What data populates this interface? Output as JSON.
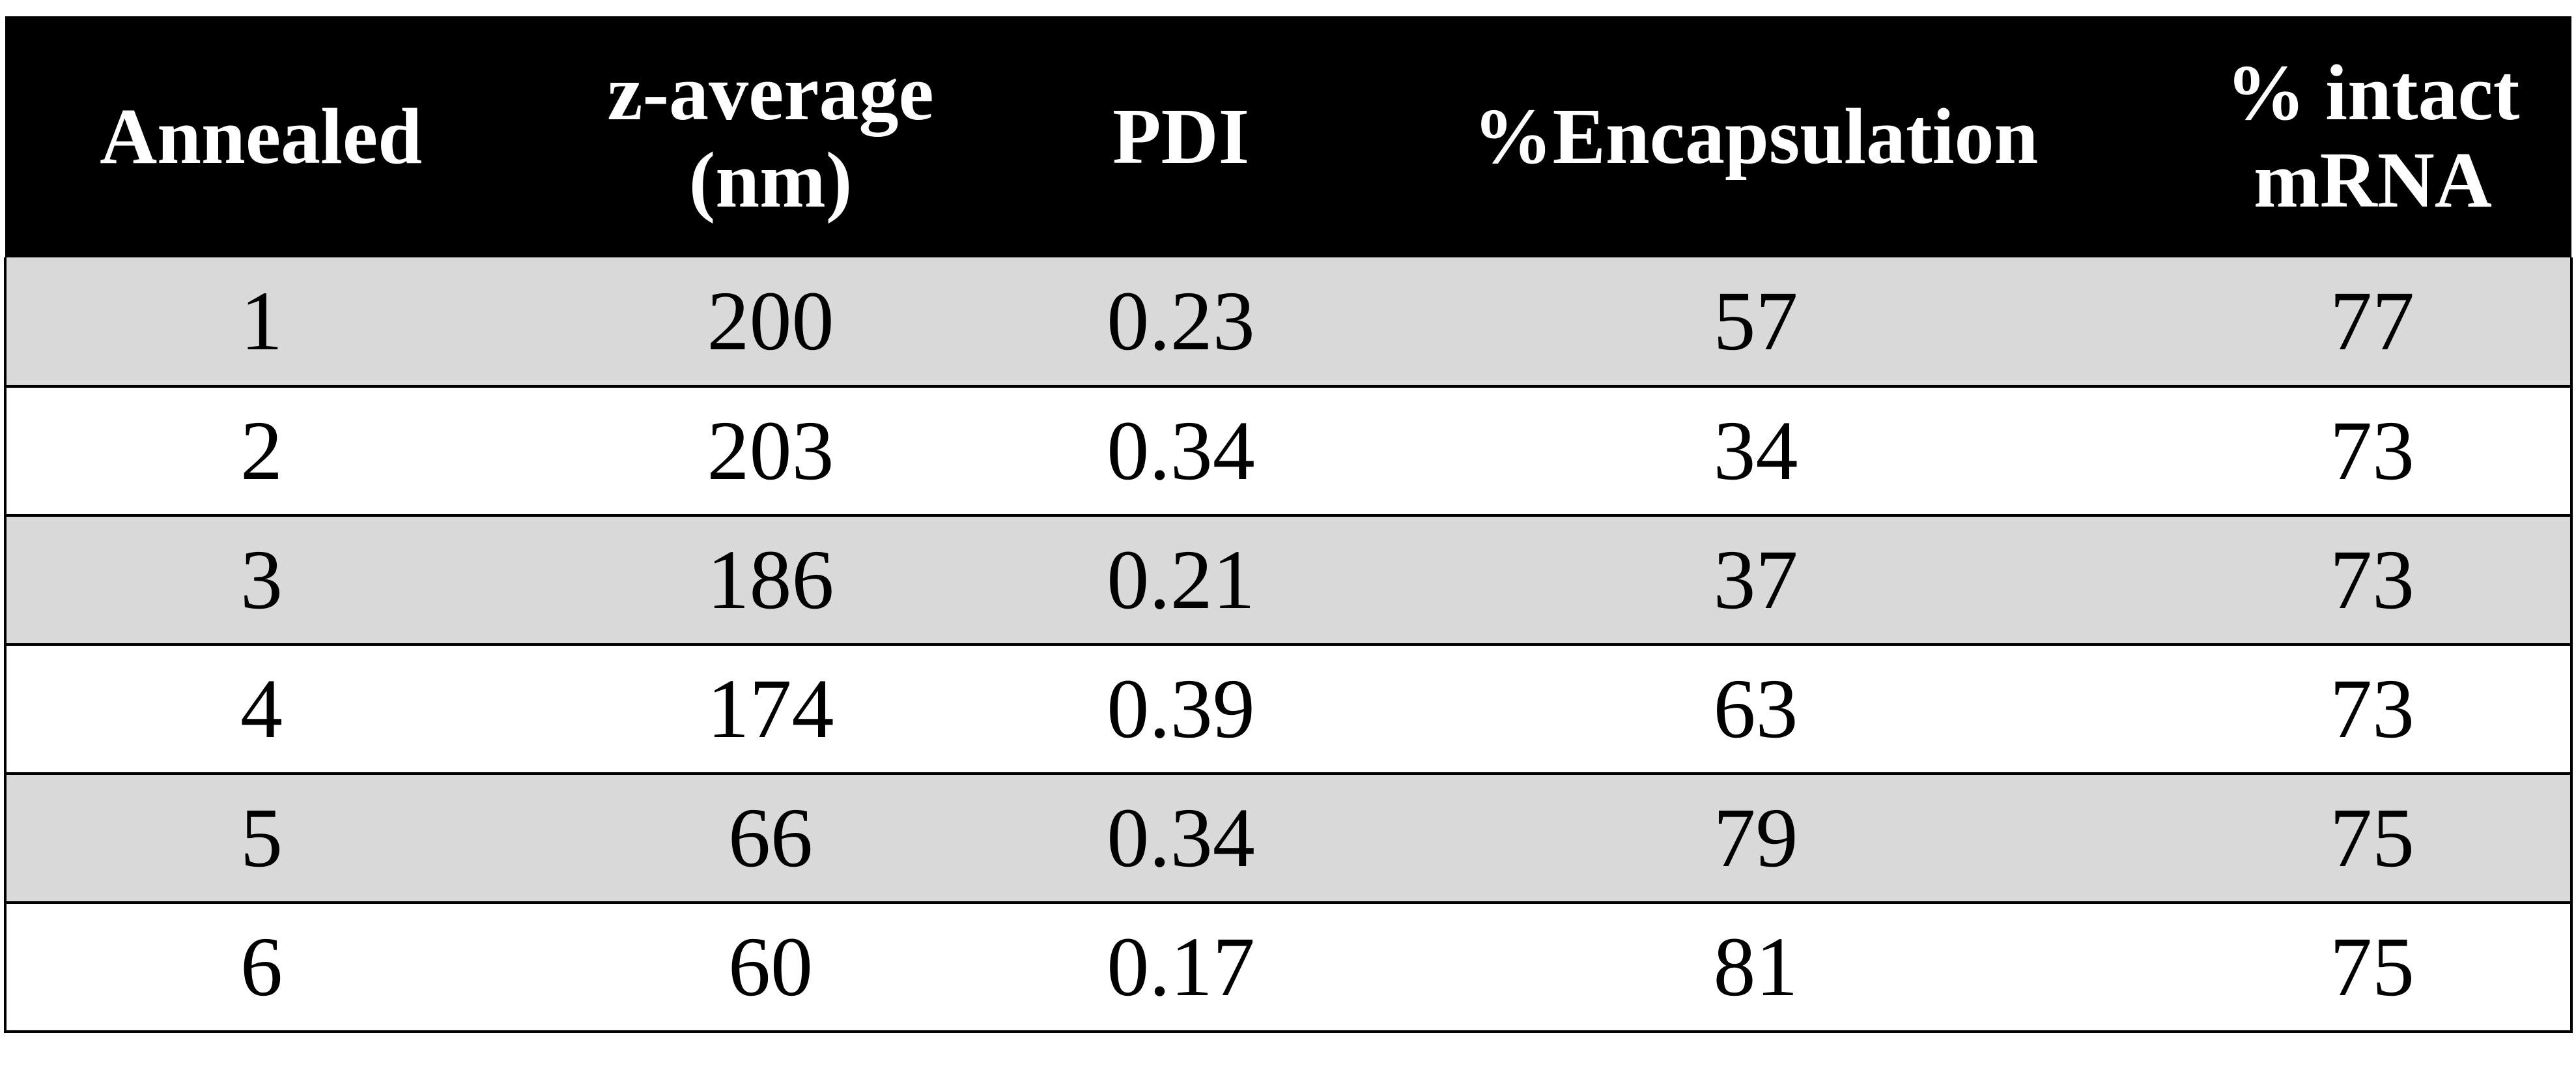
{
  "table": {
    "headers": [
      [
        "Annealed"
      ],
      [
        "z-average",
        "(nm)"
      ],
      [
        "PDI"
      ],
      [
        "%Encapsulation"
      ],
      [
        "% intact",
        "mRNA"
      ]
    ],
    "rows": [
      [
        "1",
        "200",
        "0.23",
        "57",
        "77"
      ],
      [
        "2",
        "203",
        "0.34",
        "34",
        "73"
      ],
      [
        "3",
        "186",
        "0.21",
        "37",
        "73"
      ],
      [
        "4",
        "174",
        "0.39",
        "63",
        "73"
      ],
      [
        "5",
        "66",
        "0.34",
        "79",
        "75"
      ],
      [
        "6",
        "60",
        "0.17",
        "81",
        "75"
      ]
    ],
    "colors": {
      "header_bg": "#000000",
      "header_text": "#ffffff",
      "shaded_row": "#d9d9d9",
      "plain_row": "#ffffff"
    }
  }
}
